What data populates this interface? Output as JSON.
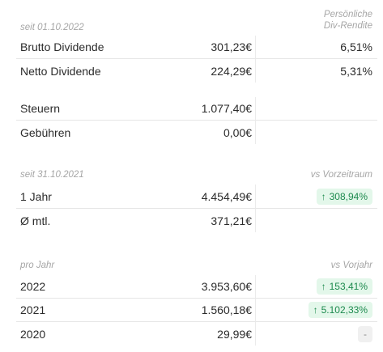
{
  "section1": {
    "caption": "seit 01.10.2022",
    "rendite_caption_line1": "Persönliche",
    "rendite_caption_line2": "Div-Rendite",
    "rows": [
      {
        "label": "Brutto Dividende",
        "value": "301,23€",
        "rendite": "6,51%"
      },
      {
        "label": "Netto Dividende",
        "value": "224,29€",
        "rendite": "5,31%"
      }
    ]
  },
  "section2": {
    "rows": [
      {
        "label": "Steuern",
        "value": "1.077,40€"
      },
      {
        "label": "Gebühren",
        "value": "0,00€"
      }
    ]
  },
  "section3": {
    "caption": "seit 31.10.2021",
    "compare_caption": "vs Vorzeitraum",
    "rows": [
      {
        "label": "1 Jahr",
        "value": "4.454,49€",
        "change": "308,94%"
      },
      {
        "label": "Ø mtl.",
        "value": "371,21€"
      }
    ]
  },
  "section4": {
    "caption": "pro Jahr",
    "compare_caption": "vs Vorjahr",
    "rows": [
      {
        "label": "2022",
        "value": "3.953,60€",
        "change": "153,41%"
      },
      {
        "label": "2021",
        "value": "1.560,18€",
        "change": "5.102,33%"
      },
      {
        "label": "2020",
        "value": "29,99€",
        "change": "-"
      }
    ]
  },
  "icons": {
    "up": "arrow-up-icon"
  },
  "colors": {
    "positive_bg": "#e3f7ea",
    "positive_text": "#1d8a4e",
    "neutral_bg": "#f0f0f0"
  }
}
